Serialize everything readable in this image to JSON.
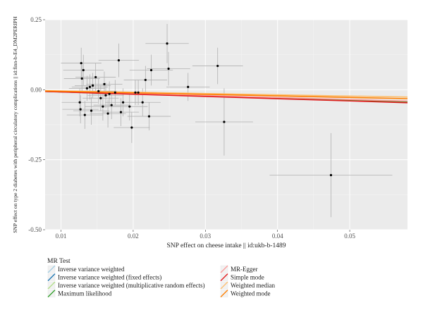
{
  "chart_data": {
    "type": "scatter",
    "title": "",
    "xlabel": "SNP effect on cheese intake || id:ukb-b-1489",
    "ylabel": "SNP effect on type 2 diabetes with peripheral circulatory complications || id:finn-b-E4_DM2PERIPH",
    "xlim": [
      0.0078,
      0.058
    ],
    "ylim": [
      -0.5,
      0.25
    ],
    "x_ticks": [
      0.01,
      0.02,
      0.03,
      0.04,
      0.05
    ],
    "x_tick_labels": [
      "0.01",
      "0.02",
      "0.03",
      "0.04",
      "0.05"
    ],
    "y_ticks": [
      0.25,
      0.0,
      -0.25,
      -0.5
    ],
    "y_tick_labels": [
      "0.25",
      "0.00",
      "-0.25",
      "-0.50"
    ],
    "grid": true,
    "panel_background": "#ebebeb",
    "points": [
      {
        "x": 0.0126,
        "y": -0.045,
        "xerr": 0.0025,
        "yerr": 0.05
      },
      {
        "x": 0.0127,
        "y": -0.07,
        "xerr": 0.0025,
        "yerr": 0.05
      },
      {
        "x": 0.0128,
        "y": 0.095,
        "xerr": 0.0028,
        "yerr": 0.055
      },
      {
        "x": 0.0129,
        "y": 0.04,
        "xerr": 0.0025,
        "yerr": 0.05
      },
      {
        "x": 0.0131,
        "y": 0.07,
        "xerr": 0.0028,
        "yerr": 0.055
      },
      {
        "x": 0.0133,
        "y": -0.09,
        "xerr": 0.0025,
        "yerr": 0.05
      },
      {
        "x": 0.0136,
        "y": 0.005,
        "xerr": 0.0025,
        "yerr": 0.045
      },
      {
        "x": 0.014,
        "y": 0.01,
        "xerr": 0.0025,
        "yerr": 0.045
      },
      {
        "x": 0.0142,
        "y": -0.075,
        "xerr": 0.0025,
        "yerr": 0.05
      },
      {
        "x": 0.0144,
        "y": 0.015,
        "xerr": 0.0025,
        "yerr": 0.045
      },
      {
        "x": 0.0148,
        "y": 0.045,
        "xerr": 0.0028,
        "yerr": 0.05
      },
      {
        "x": 0.0152,
        "y": -0.005,
        "xerr": 0.0025,
        "yerr": 0.045
      },
      {
        "x": 0.0155,
        "y": -0.03,
        "xerr": 0.0025,
        "yerr": 0.045
      },
      {
        "x": 0.0158,
        "y": -0.06,
        "xerr": 0.0025,
        "yerr": 0.05
      },
      {
        "x": 0.016,
        "y": 0.02,
        "xerr": 0.0025,
        "yerr": 0.045
      },
      {
        "x": 0.0162,
        "y": -0.02,
        "xerr": 0.0025,
        "yerr": 0.045
      },
      {
        "x": 0.0165,
        "y": -0.085,
        "xerr": 0.0025,
        "yerr": 0.05
      },
      {
        "x": 0.0167,
        "y": -0.015,
        "xerr": 0.0025,
        "yerr": 0.045
      },
      {
        "x": 0.017,
        "y": -0.055,
        "xerr": 0.0025,
        "yerr": 0.05
      },
      {
        "x": 0.0175,
        "y": -0.01,
        "xerr": 0.0025,
        "yerr": 0.045
      },
      {
        "x": 0.018,
        "y": 0.105,
        "xerr": 0.0028,
        "yerr": 0.06
      },
      {
        "x": 0.0183,
        "y": -0.08,
        "xerr": 0.0025,
        "yerr": 0.05
      },
      {
        "x": 0.0186,
        "y": -0.045,
        "xerr": 0.0025,
        "yerr": 0.05
      },
      {
        "x": 0.0195,
        "y": -0.06,
        "xerr": 0.0025,
        "yerr": 0.05
      },
      {
        "x": 0.0198,
        "y": -0.135,
        "xerr": 0.0025,
        "yerr": 0.055
      },
      {
        "x": 0.0203,
        "y": -0.01,
        "xerr": 0.0025,
        "yerr": 0.045
      },
      {
        "x": 0.0207,
        "y": -0.01,
        "xerr": 0.0025,
        "yerr": 0.045
      },
      {
        "x": 0.0213,
        "y": -0.045,
        "xerr": 0.0025,
        "yerr": 0.05
      },
      {
        "x": 0.0217,
        "y": 0.035,
        "xerr": 0.003,
        "yerr": 0.05
      },
      {
        "x": 0.0222,
        "y": -0.095,
        "xerr": 0.003,
        "yerr": 0.05
      },
      {
        "x": 0.0225,
        "y": 0.07,
        "xerr": 0.003,
        "yerr": 0.055
      },
      {
        "x": 0.0247,
        "y": 0.165,
        "xerr": 0.003,
        "yerr": 0.07
      },
      {
        "x": 0.0249,
        "y": 0.075,
        "xerr": 0.003,
        "yerr": 0.06
      },
      {
        "x": 0.0276,
        "y": 0.01,
        "xerr": 0.003,
        "yerr": 0.05
      },
      {
        "x": 0.0317,
        "y": 0.085,
        "xerr": 0.0035,
        "yerr": 0.065
      },
      {
        "x": 0.0326,
        "y": -0.115,
        "xerr": 0.004,
        "yerr": 0.12
      },
      {
        "x": 0.0474,
        "y": -0.305,
        "xerr": 0.0085,
        "yerr": 0.15
      }
    ],
    "legend_title": "MR Test",
    "legend_position": "bottom",
    "series": [
      {
        "name": "Inverse variance weighted",
        "color": "#a6cee3",
        "slope": -0.75
      },
      {
        "name": "Inverse variance weighted (fixed effects)",
        "color": "#1f78b4",
        "slope": -0.75
      },
      {
        "name": "Inverse variance weighted (multiplicative random effects)",
        "color": "#b2df8a",
        "slope": -0.75
      },
      {
        "name": "Maximum likelihood",
        "color": "#33a02c",
        "slope": -0.75
      },
      {
        "name": "MR-Egger",
        "color": "#fb9a99",
        "slope": -0.7
      },
      {
        "name": "Simple mode",
        "color": "#e31a1c",
        "slope": -0.8
      },
      {
        "name": "Weighted median",
        "color": "#fdbf6f",
        "slope": -0.45
      },
      {
        "name": "Weighted mode",
        "color": "#ff7f00",
        "slope": -0.55
      }
    ]
  }
}
